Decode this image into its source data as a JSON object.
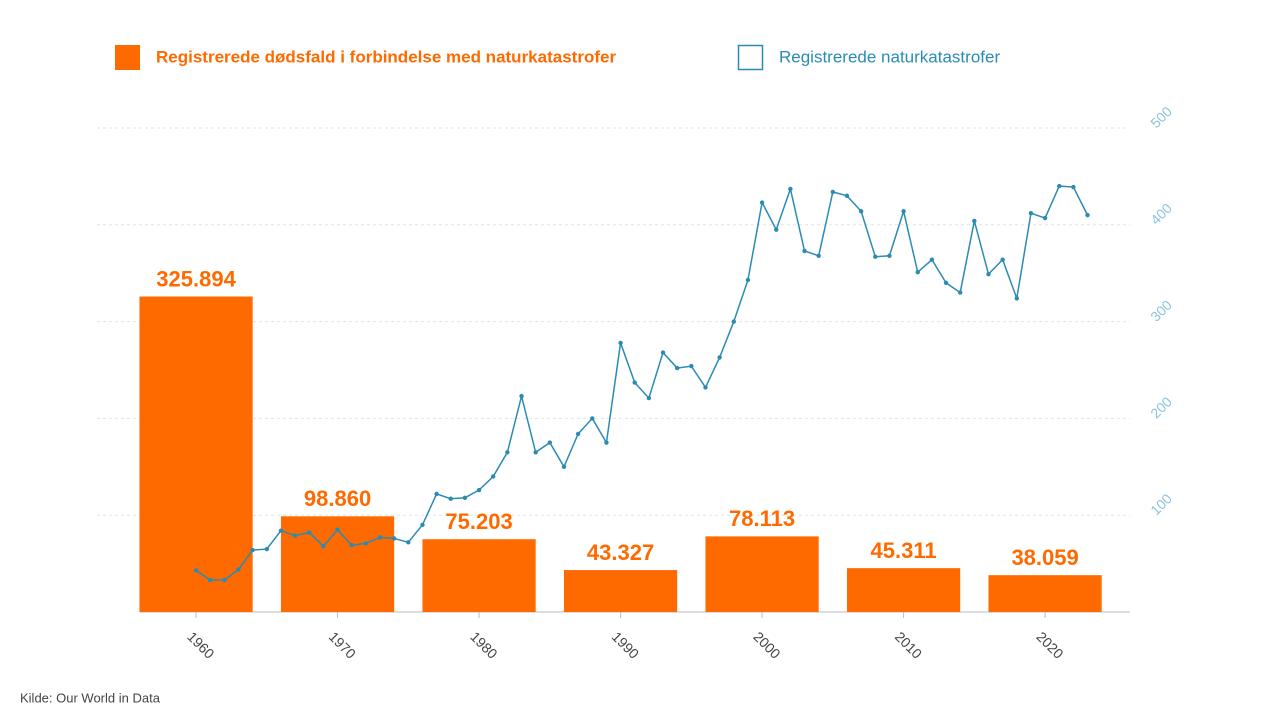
{
  "chart_data": {
    "type": "bar",
    "source": "Kilde: Our World in Data",
    "legend": "top",
    "grid": true,
    "xlim": [
      1953,
      2026
    ],
    "xticks": [
      1960,
      1970,
      1980,
      1990,
      2000,
      2010,
      2020
    ],
    "ylim": [
      0,
      500000
    ],
    "y2lim": [
      0,
      500
    ],
    "y2ticks": [
      100,
      200,
      300,
      400,
      500
    ],
    "series": [
      {
        "name": "Registrerede dødsfald i forbindelse med naturkatastrofer",
        "type": "bar",
        "color": "#ff6a00",
        "x": [
          1960,
          1970,
          1980,
          1990,
          2000,
          2010,
          2020
        ],
        "values": [
          325894,
          98860,
          75203,
          43327,
          78113,
          45311,
          38059
        ],
        "value_labels": [
          "325.894",
          "98.860",
          "75.203",
          "43.327",
          "78.113",
          "45.311",
          "38.059"
        ]
      },
      {
        "name": "Registrerede naturkatastrofer",
        "type": "line",
        "axis": "y2",
        "color": "#2a8bb4",
        "x": [
          1960,
          1961,
          1962,
          1963,
          1964,
          1965,
          1966,
          1967,
          1968,
          1969,
          1970,
          1971,
          1972,
          1973,
          1974,
          1975,
          1976,
          1977,
          1978,
          1979,
          1980,
          1981,
          1982,
          1983,
          1984,
          1985,
          1986,
          1987,
          1988,
          1989,
          1990,
          1991,
          1992,
          1993,
          1994,
          1995,
          1996,
          1997,
          1998,
          1999,
          2000,
          2001,
          2002,
          2003,
          2004,
          2005,
          2006,
          2007,
          2008,
          2009,
          2010,
          2011,
          2012,
          2013,
          2014,
          2015,
          2016,
          2017,
          2018,
          2019,
          2020,
          2021,
          2022,
          2023
        ],
        "values": [
          43,
          33,
          33,
          44,
          64,
          65,
          84,
          79,
          82,
          68,
          85,
          69,
          71,
          77,
          76,
          72,
          90,
          122,
          117,
          118,
          126,
          140,
          165,
          223,
          165,
          175,
          150,
          184,
          200,
          175,
          278,
          237,
          221,
          268,
          252,
          254,
          232,
          263,
          300,
          343,
          423,
          395,
          437,
          373,
          368,
          434,
          430,
          414,
          367,
          368,
          414,
          351,
          364,
          340,
          330,
          404,
          349,
          364,
          324,
          412,
          407,
          440,
          439,
          410
        ]
      }
    ]
  }
}
